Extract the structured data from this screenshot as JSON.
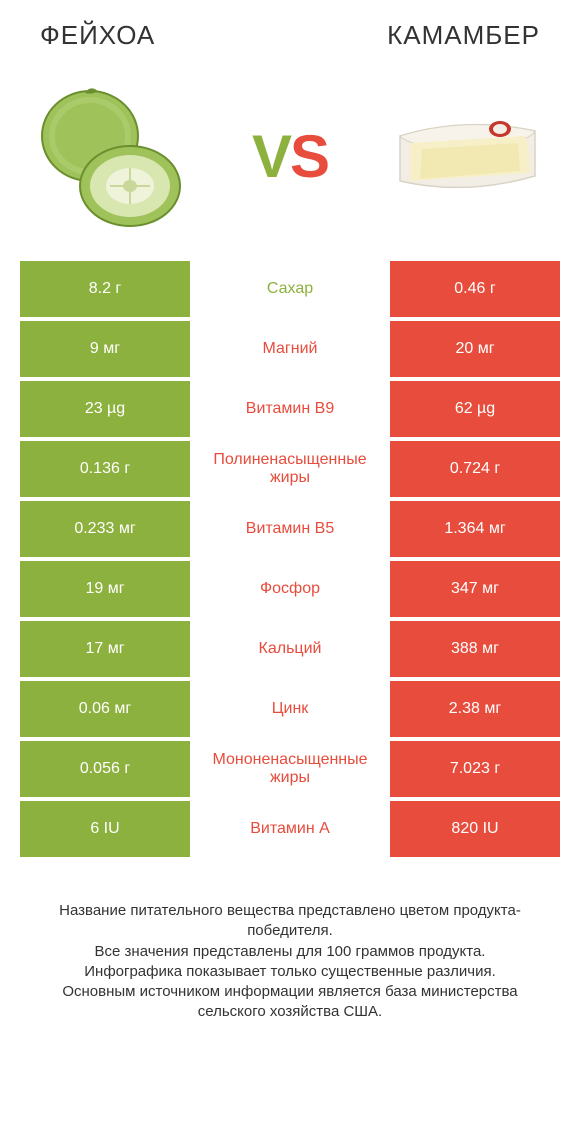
{
  "header": {
    "left_title": "ФЕЙХОА",
    "right_title": "КАМАМБЕР"
  },
  "vs": {
    "v": "V",
    "s": "S"
  },
  "colors": {
    "green": "#8db13e",
    "red": "#e74c3c",
    "feijoa_dark": "#6a8f2e",
    "feijoa_mid": "#9fc25a",
    "feijoa_light": "#d8e6b0",
    "cheese_rind": "#f3eee5",
    "cheese_body": "#f7efc8",
    "cheese_inner": "#efe5a8"
  },
  "rows": [
    {
      "left": "8.2 г",
      "mid": "Сахар",
      "right": "0.46 г",
      "winner": "left"
    },
    {
      "left": "9 мг",
      "mid": "Магний",
      "right": "20 мг",
      "winner": "right"
    },
    {
      "left": "23 µg",
      "mid": "Витамин B9",
      "right": "62 µg",
      "winner": "right"
    },
    {
      "left": "0.136 г",
      "mid": "Полиненасыщенные жиры",
      "right": "0.724 г",
      "winner": "right"
    },
    {
      "left": "0.233 мг",
      "mid": "Витамин B5",
      "right": "1.364 мг",
      "winner": "right"
    },
    {
      "left": "19 мг",
      "mid": "Фосфор",
      "right": "347 мг",
      "winner": "right"
    },
    {
      "left": "17 мг",
      "mid": "Кальций",
      "right": "388 мг",
      "winner": "right"
    },
    {
      "left": "0.06 мг",
      "mid": "Цинк",
      "right": "2.38 мг",
      "winner": "right"
    },
    {
      "left": "0.056 г",
      "mid": "Мононенасыщенные жиры",
      "right": "7.023 г",
      "winner": "right"
    },
    {
      "left": "6 IU",
      "mid": "Витамин A",
      "right": "820 IU",
      "winner": "right"
    }
  ],
  "footer": {
    "line1": "Название питательного вещества представлено цветом продукта-победителя.",
    "line2": "Все значения представлены для 100 граммов продукта.",
    "line3": "Инфографика показывает только существенные различия.",
    "line4": "Основным источником информации является база министерства сельского хозяйства США."
  }
}
